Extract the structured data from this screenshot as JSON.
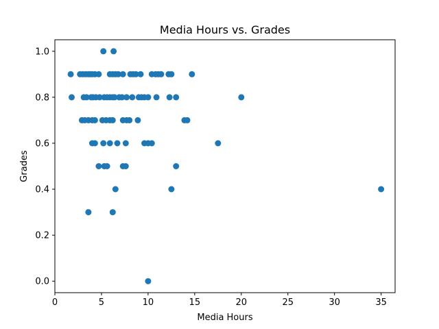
{
  "chart_data": {
    "type": "scatter",
    "title": "Media Hours vs. Grades",
    "xlabel": "Media Hours",
    "ylabel": "Grades",
    "xlim": [
      0,
      36.5
    ],
    "ylim": [
      -0.05,
      1.05
    ],
    "xticks": [
      0,
      5,
      10,
      15,
      20,
      25,
      30,
      35
    ],
    "yticks": [
      0.0,
      0.2,
      0.4,
      0.6,
      0.8,
      1.0
    ],
    "grid": false,
    "legend": "none",
    "color": "#1f77b4",
    "series": [
      {
        "x": [
          5.2,
          6.3,
          1.7,
          2.7,
          3.0,
          3.3,
          3.6,
          3.8,
          4.0,
          4.3,
          4.7,
          5.9,
          6.2,
          6.5,
          6.8,
          7.3,
          8.1,
          8.4,
          8.7,
          9.2,
          10.4,
          10.8,
          11.1,
          11.4,
          12.2,
          12.5,
          14.7,
          1.8,
          3.1,
          3.4,
          3.9,
          4.1,
          4.4,
          4.8,
          5.3,
          5.6,
          5.9,
          6.2,
          6.4,
          6.9,
          7.2,
          7.7,
          8.3,
          9.0,
          9.3,
          9.6,
          10.0,
          10.9,
          12.3,
          13.0,
          20.0,
          2.9,
          3.2,
          3.6,
          4.0,
          4.3,
          5.1,
          5.5,
          5.9,
          6.2,
          7.3,
          7.7,
          8.0,
          8.9,
          13.9,
          14.2,
          4.0,
          4.3,
          5.2,
          5.9,
          6.7,
          7.6,
          9.6,
          10.0,
          10.4,
          17.5,
          4.7,
          5.3,
          5.6,
          7.3,
          7.6,
          13.0,
          6.5,
          12.5,
          35.0,
          3.6,
          6.2,
          10.0
        ],
        "y": [
          1.0,
          1.0,
          0.9,
          0.9,
          0.9,
          0.9,
          0.9,
          0.9,
          0.9,
          0.9,
          0.9,
          0.9,
          0.9,
          0.9,
          0.9,
          0.9,
          0.9,
          0.9,
          0.9,
          0.9,
          0.9,
          0.9,
          0.9,
          0.9,
          0.9,
          0.9,
          0.9,
          0.8,
          0.8,
          0.8,
          0.8,
          0.8,
          0.8,
          0.8,
          0.8,
          0.8,
          0.8,
          0.8,
          0.8,
          0.8,
          0.8,
          0.8,
          0.8,
          0.8,
          0.8,
          0.8,
          0.8,
          0.8,
          0.8,
          0.8,
          0.8,
          0.7,
          0.7,
          0.7,
          0.7,
          0.7,
          0.7,
          0.7,
          0.7,
          0.7,
          0.7,
          0.7,
          0.7,
          0.7,
          0.7,
          0.7,
          0.6,
          0.6,
          0.6,
          0.6,
          0.6,
          0.6,
          0.6,
          0.6,
          0.6,
          0.6,
          0.5,
          0.5,
          0.5,
          0.5,
          0.5,
          0.5,
          0.4,
          0.4,
          0.4,
          0.3,
          0.3,
          0.0
        ]
      }
    ]
  }
}
